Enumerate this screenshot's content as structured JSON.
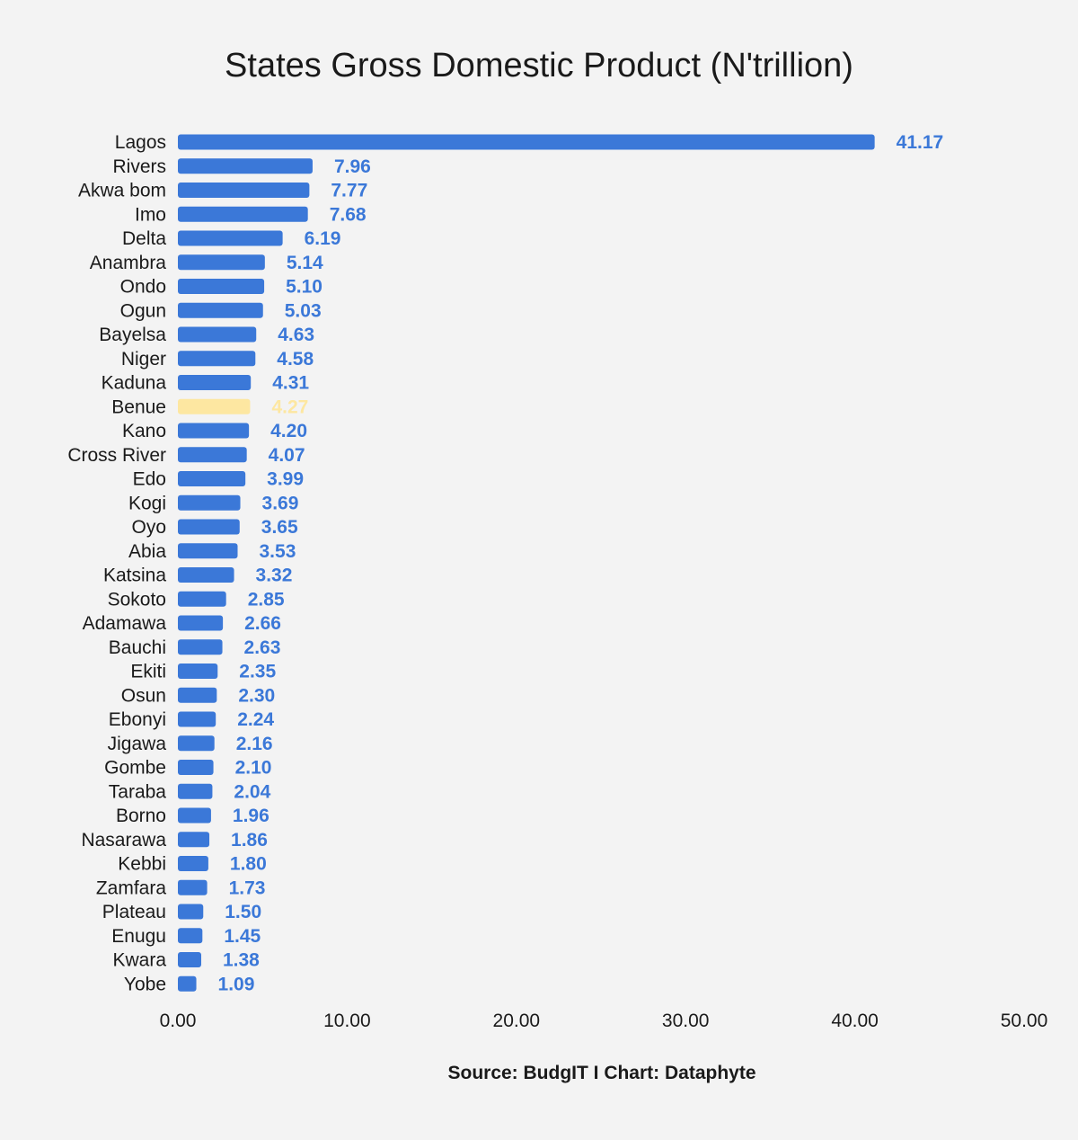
{
  "colors": {
    "bar": "#3b78d8",
    "highlight": "#fde7a1",
    "value_label": "#3b78d8",
    "highlight_label": "#fde7a1",
    "text": "#1a1a1a",
    "background": "#f3f3f3"
  },
  "source": "Source: BudgIT I Chart: Dataphyte",
  "chart_data": {
    "type": "bar",
    "orientation": "horizontal",
    "title": "States Gross Domestic Product (N'trillion)",
    "xlabel": "",
    "ylabel": "",
    "xlim": [
      0,
      50
    ],
    "xticks": [
      "0.00",
      "10.00",
      "20.00",
      "30.00",
      "40.00",
      "50.00"
    ],
    "grid": false,
    "legend": "none",
    "highlight_category": "Benue",
    "categories": [
      "Lagos",
      "Rivers",
      "Akwa bom",
      "Imo",
      "Delta",
      "Anambra",
      "Ondo",
      "Ogun",
      "Bayelsa",
      "Niger",
      "Kaduna",
      "Benue",
      "Kano",
      "Cross River",
      "Edo",
      "Kogi",
      "Oyo",
      "Abia",
      "Katsina",
      "Sokoto",
      "Adamawa",
      "Bauchi",
      "Ekiti",
      "Osun",
      "Ebonyi",
      "Jigawa",
      "Gombe",
      "Taraba",
      "Borno",
      "Nasarawa",
      "Kebbi",
      "Zamfara",
      "Plateau",
      "Enugu",
      "Kwara",
      "Yobe"
    ],
    "values": [
      41.17,
      7.96,
      7.77,
      7.68,
      6.19,
      5.14,
      5.1,
      5.03,
      4.63,
      4.58,
      4.31,
      4.27,
      4.2,
      4.07,
      3.99,
      3.69,
      3.65,
      3.53,
      3.32,
      2.85,
      2.66,
      2.63,
      2.35,
      2.3,
      2.24,
      2.16,
      2.1,
      2.04,
      1.96,
      1.86,
      1.8,
      1.73,
      1.5,
      1.45,
      1.38,
      1.09
    ],
    "value_labels": [
      "41.17",
      "7.96",
      "7.77",
      "7.68",
      "6.19",
      "5.14",
      "5.10",
      "5.03",
      "4.63",
      "4.58",
      "4.31",
      "4.27",
      "4.20",
      "4.07",
      "3.99",
      "3.69",
      "3.65",
      "3.53",
      "3.32",
      "2.85",
      "2.66",
      "2.63",
      "2.35",
      "2.30",
      "2.24",
      "2.16",
      "2.10",
      "2.04",
      "1.96",
      "1.86",
      "1.80",
      "1.73",
      "1.50",
      "1.45",
      "1.38",
      "1.09"
    ]
  }
}
